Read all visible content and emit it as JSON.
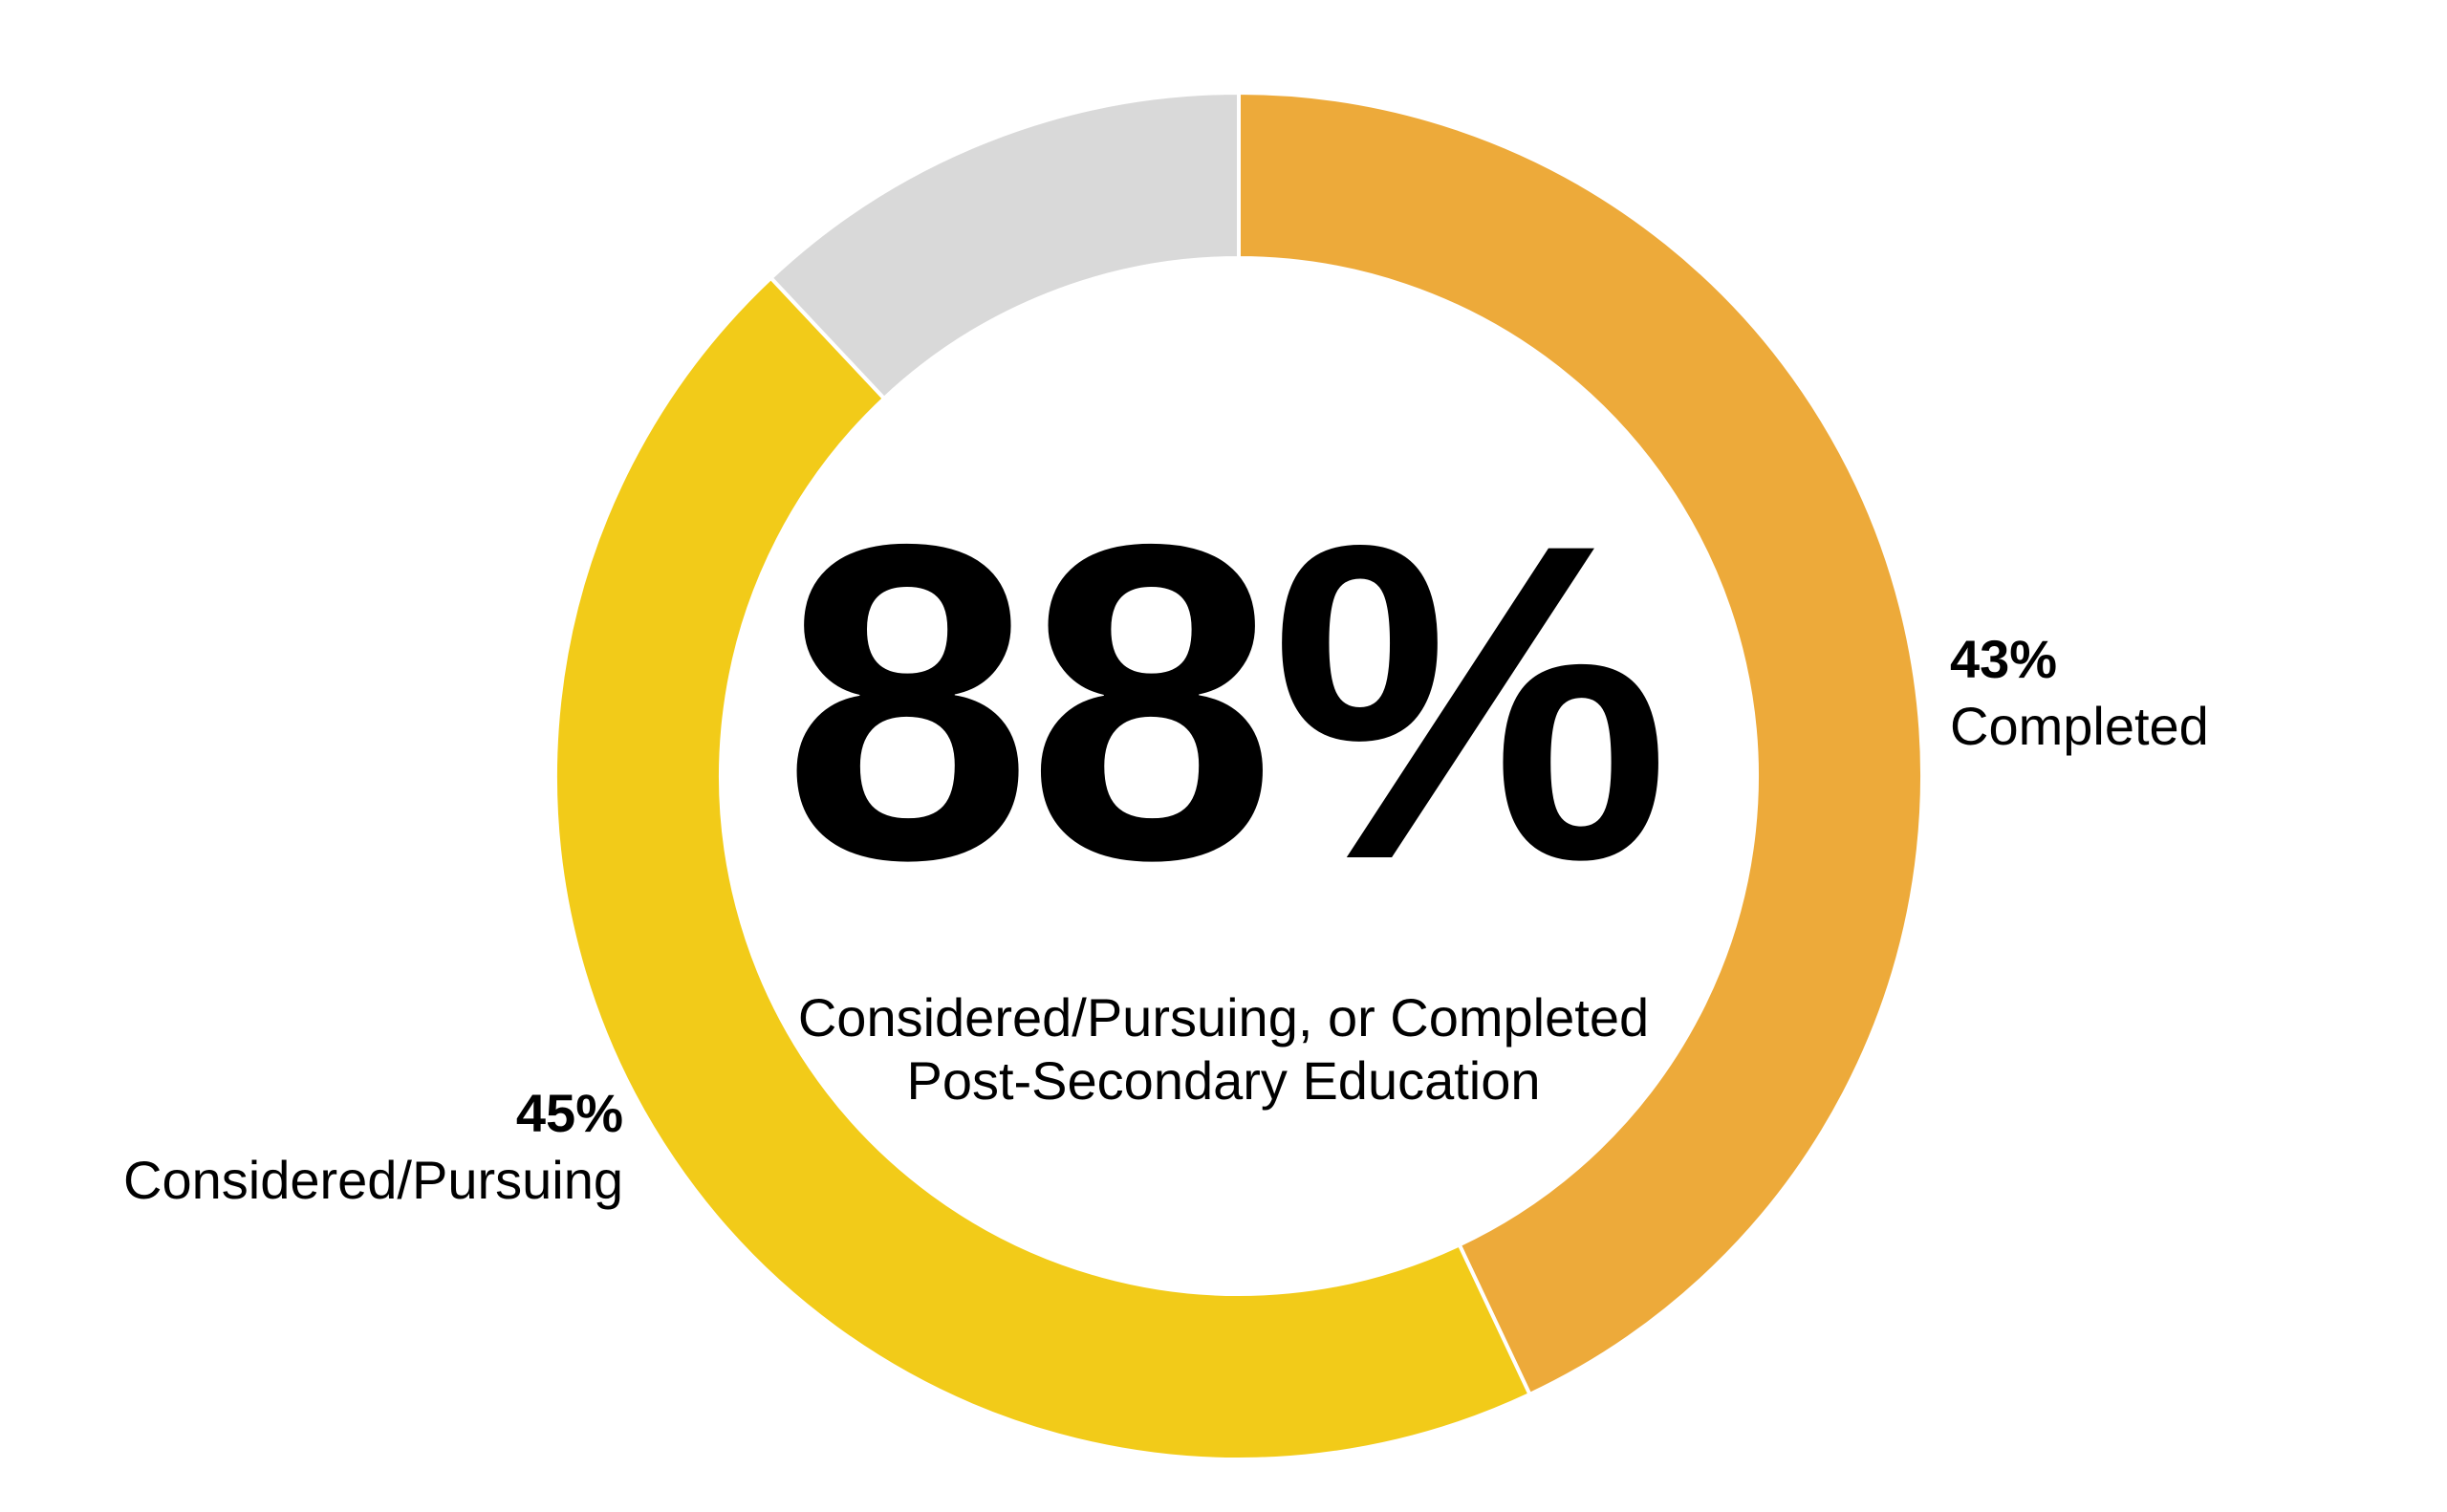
{
  "chart_data": {
    "type": "pie",
    "variant": "donut",
    "center_value": "88%",
    "center_caption_lines": [
      "Considered/Pursuing, or Completed",
      "Post-Secondary Education"
    ],
    "slices": [
      {
        "name": "Completed",
        "value": 43,
        "value_label": "43%",
        "color": "#EDAA3A",
        "label_side": "right"
      },
      {
        "name": "Considered/Pursuing",
        "value": 45,
        "value_label": "45%",
        "color": "#F2CB19",
        "label_side": "left"
      },
      {
        "value": 12,
        "color": "#D9D9D9"
      }
    ],
    "legend": false,
    "grid": false
  }
}
